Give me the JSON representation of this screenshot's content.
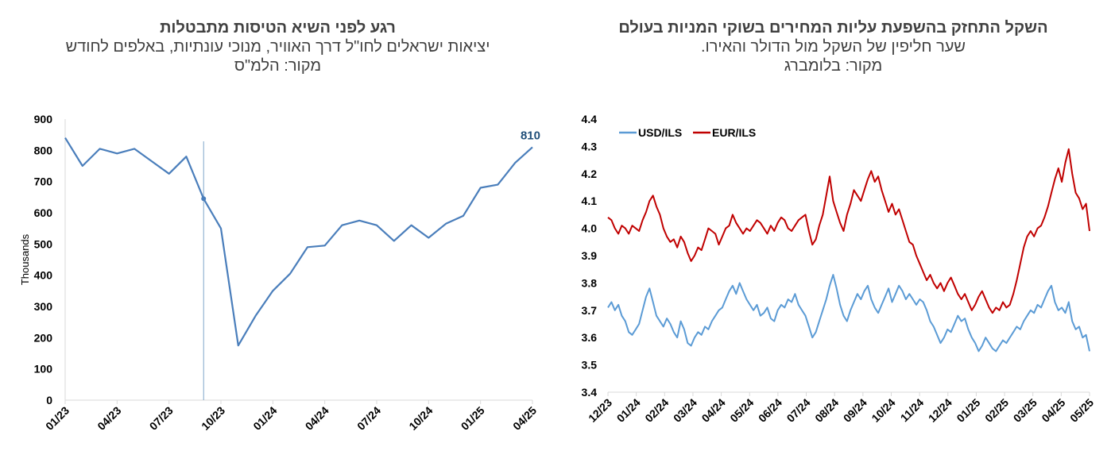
{
  "left_panel": {
    "title": "רגע לפני השיא הטיסות מתבטלות",
    "subtitle": "יציאות ישראלים לחו\"ל דרך האוויר, מנוכי עונתיות, באלפים לחודש",
    "source": "מקור: הלמ\"ס"
  },
  "right_panel": {
    "title": "השקל התחזק בהשפעת עליות המחירים בשוקי המניות בעולם",
    "subtitle": "שער חליפין של השקל מול הדולר והאירו.",
    "source": "מקור: בלומברג"
  },
  "colors": {
    "usd": "#5b9bd5",
    "eur": "#c00000",
    "line": "#4a7ebb",
    "label": "#1f4e79"
  },
  "chart_data": [
    {
      "type": "line",
      "title": "רגע לפני השיא הטיסות מתבטלות",
      "ylabel": "Thousands",
      "ylim": [
        0,
        900
      ],
      "yticks": [
        "0",
        "100",
        "200",
        "300",
        "400",
        "500",
        "600",
        "700",
        "800",
        "900"
      ],
      "xticks": [
        "01/23",
        "04/23",
        "07/23",
        "10/23",
        "01/24",
        "04/24",
        "07/24",
        "10/24",
        "01/25",
        "04/25"
      ],
      "x": [
        "01/23",
        "02/23",
        "03/23",
        "04/23",
        "05/23",
        "06/23",
        "07/23",
        "08/23",
        "09/23",
        "10/23",
        "11/23",
        "12/23",
        "01/24",
        "02/24",
        "03/24",
        "04/24",
        "05/24",
        "06/24",
        "07/24",
        "08/24",
        "09/24",
        "10/24",
        "11/24",
        "12/24",
        "01/25",
        "02/25",
        "03/25",
        "04/25"
      ],
      "series": [
        {
          "values": [
            840,
            750,
            805,
            790,
            805,
            765,
            725,
            780,
            645,
            550,
            175,
            270,
            350,
            405,
            490,
            495,
            560,
            575,
            560,
            510,
            560,
            520,
            565,
            590,
            680,
            690,
            760,
            810
          ]
        }
      ],
      "marker_point": {
        "x": "09/23",
        "value": 645
      },
      "vertical_line_at": "09/23",
      "end_label": "810",
      "grid": false
    },
    {
      "type": "line",
      "title": "השקל התחזק בהשפעת עליות המחירים בשוקי המניות בעולם",
      "ylim": [
        3.4,
        4.4
      ],
      "yticks": [
        "3.4",
        "3.5",
        "3.6",
        "3.7",
        "3.8",
        "3.9",
        "4.0",
        "4.1",
        "4.2",
        "4.3",
        "4.4"
      ],
      "xticks": [
        "12/23",
        "01/24",
        "02/24",
        "03/24",
        "04/24",
        "05/24",
        "06/24",
        "07/24",
        "08/24",
        "09/24",
        "10/24",
        "11/24",
        "12/24",
        "01/25",
        "02/25",
        "03/25",
        "04/25",
        "05/25"
      ],
      "legend": "top-left",
      "grid": false,
      "series": [
        {
          "name": "USD/ILS",
          "values": [
            3.71,
            3.73,
            3.7,
            3.72,
            3.68,
            3.66,
            3.62,
            3.61,
            3.63,
            3.65,
            3.7,
            3.75,
            3.78,
            3.73,
            3.68,
            3.66,
            3.64,
            3.67,
            3.65,
            3.62,
            3.6,
            3.66,
            3.63,
            3.58,
            3.57,
            3.6,
            3.62,
            3.61,
            3.64,
            3.63,
            3.66,
            3.68,
            3.7,
            3.71,
            3.74,
            3.77,
            3.79,
            3.76,
            3.8,
            3.77,
            3.74,
            3.72,
            3.7,
            3.72,
            3.68,
            3.69,
            3.71,
            3.67,
            3.66,
            3.7,
            3.72,
            3.71,
            3.74,
            3.73,
            3.76,
            3.72,
            3.7,
            3.68,
            3.64,
            3.6,
            3.62,
            3.66,
            3.7,
            3.74,
            3.79,
            3.83,
            3.78,
            3.72,
            3.68,
            3.66,
            3.7,
            3.73,
            3.76,
            3.74,
            3.77,
            3.79,
            3.74,
            3.71,
            3.69,
            3.72,
            3.75,
            3.78,
            3.73,
            3.76,
            3.79,
            3.77,
            3.74,
            3.76,
            3.74,
            3.72,
            3.74,
            3.73,
            3.7,
            3.66,
            3.64,
            3.61,
            3.58,
            3.6,
            3.63,
            3.62,
            3.65,
            3.68,
            3.66,
            3.67,
            3.63,
            3.6,
            3.58,
            3.55,
            3.57,
            3.6,
            3.58,
            3.56,
            3.55,
            3.57,
            3.59,
            3.58,
            3.6,
            3.62,
            3.64,
            3.63,
            3.66,
            3.68,
            3.7,
            3.69,
            3.72,
            3.71,
            3.74,
            3.77,
            3.79,
            3.73,
            3.7,
            3.71,
            3.69,
            3.73,
            3.66,
            3.63,
            3.64,
            3.6,
            3.61,
            3.55
          ]
        },
        {
          "name": "EUR/ILS",
          "values": [
            4.04,
            4.03,
            4.0,
            3.98,
            4.01,
            4.0,
            3.98,
            4.01,
            4.0,
            3.99,
            4.03,
            4.06,
            4.1,
            4.12,
            4.08,
            4.05,
            4.0,
            3.97,
            3.95,
            3.96,
            3.93,
            3.97,
            3.95,
            3.91,
            3.88,
            3.9,
            3.93,
            3.92,
            3.96,
            4.0,
            3.99,
            3.98,
            3.94,
            3.97,
            4.0,
            4.01,
            4.05,
            4.02,
            4.0,
            3.98,
            4.0,
            3.99,
            4.01,
            4.03,
            4.02,
            4.0,
            3.98,
            4.01,
            3.99,
            4.02,
            4.04,
            4.03,
            4.0,
            3.99,
            4.01,
            4.03,
            4.04,
            4.05,
            3.99,
            3.94,
            3.96,
            4.01,
            4.05,
            4.12,
            4.19,
            4.1,
            4.06,
            4.02,
            3.99,
            4.05,
            4.09,
            4.14,
            4.12,
            4.1,
            4.14,
            4.18,
            4.21,
            4.17,
            4.19,
            4.14,
            4.1,
            4.06,
            4.09,
            4.05,
            4.07,
            4.03,
            3.99,
            3.95,
            3.94,
            3.9,
            3.87,
            3.84,
            3.81,
            3.83,
            3.8,
            3.78,
            3.8,
            3.77,
            3.8,
            3.82,
            3.79,
            3.76,
            3.74,
            3.76,
            3.73,
            3.7,
            3.72,
            3.75,
            3.77,
            3.74,
            3.71,
            3.69,
            3.71,
            3.7,
            3.73,
            3.71,
            3.72,
            3.76,
            3.81,
            3.87,
            3.93,
            3.97,
            3.99,
            3.97,
            4.0,
            4.01,
            4.04,
            4.08,
            4.13,
            4.18,
            4.22,
            4.17,
            4.24,
            4.29,
            4.2,
            4.13,
            4.11,
            4.07,
            4.09,
            3.99
          ]
        }
      ]
    }
  ]
}
